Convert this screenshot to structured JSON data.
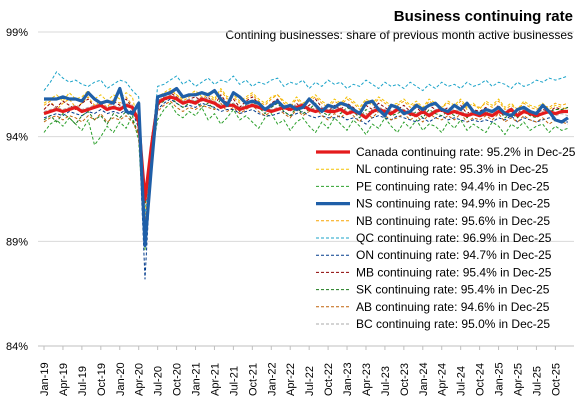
{
  "title": "Business continuing rate",
  "subtitle": "Contining businesses: share of previous month active businesses",
  "chart_data": {
    "type": "line",
    "title": "Business continuing rate",
    "subtitle": "Contining businesses: share of previous month active businesses",
    "xlabel": "",
    "ylabel": "",
    "ylim": [
      84,
      99
    ],
    "yticks": [
      84,
      89,
      94,
      99
    ],
    "ytick_labels": [
      "84%",
      "89%",
      "94%",
      "99%"
    ],
    "x_ticks": [
      "Jan-19",
      "Apr-19",
      "Jul-19",
      "Oct-19",
      "Jan-20",
      "Apr-20",
      "Jul-20",
      "Oct-20",
      "Jan-21",
      "Apr-21",
      "Jul-21",
      "Oct-21",
      "Jan-22",
      "Apr-22",
      "Jul-22",
      "Oct-22",
      "Jan-23",
      "Apr-23",
      "Jul-23",
      "Oct-23",
      "Jan-24",
      "Apr-24",
      "Jul-24",
      "Oct-24",
      "Jan-25",
      "Apr-25",
      "Jul-25",
      "Oct-25"
    ],
    "x_start": "Jan-19",
    "x_end": "Dec-25",
    "grid": "horizontal",
    "legend_position": "right",
    "series": [
      {
        "name": "Canada continuing rate: 95.2% in Dec-25",
        "color": "#e41a1c",
        "style": "solid",
        "width": 3.2,
        "values": [
          95.1,
          95.2,
          95.3,
          95.2,
          95.3,
          95.4,
          95.2,
          95.3,
          95.4,
          95.5,
          95.3,
          95.4,
          95.3,
          95.5,
          95.4,
          94.7,
          91.0,
          93.5,
          95.6,
          95.8,
          95.9,
          95.8,
          95.6,
          95.7,
          95.6,
          95.8,
          95.7,
          95.6,
          95.4,
          95.5,
          95.5,
          95.3,
          95.4,
          95.5,
          95.4,
          95.3,
          95.2,
          95.3,
          95.4,
          95.3,
          95.4,
          95.5,
          95.3,
          95.2,
          95.3,
          95.2,
          95.2,
          95.3,
          95.1,
          95.2,
          95.1,
          94.9,
          95.2,
          95.3,
          95.2,
          95.1,
          95.3,
          95.2,
          95.1,
          95.0,
          95.2,
          95.0,
          95.2,
          95.3,
          95.1,
          95.2,
          95.1,
          95.0,
          95.1,
          95.0,
          95.1,
          95.0,
          95.2,
          95.1,
          95.3,
          95.0,
          95.2,
          95.1,
          95.0,
          95.1,
          95.2,
          95.1,
          95.2,
          95.2
        ]
      },
      {
        "name": "NL continuing rate: 95.3% in Dec-25",
        "color": "#f3c200",
        "style": "dashed",
        "width": 1,
        "values": [
          95.6,
          95.8,
          96.0,
          95.7,
          96.1,
          95.8,
          95.9,
          96.2,
          95.8,
          96.0,
          95.7,
          96.0,
          95.8,
          96.1,
          95.9,
          94.5,
          90.5,
          93.8,
          95.9,
          96.1,
          96.3,
          96.0,
          95.8,
          96.0,
          96.2,
          95.9,
          96.1,
          95.8,
          96.3,
          95.9,
          96.0,
          95.7,
          95.9,
          96.1,
          95.8,
          95.6,
          95.9,
          96.0,
          95.7,
          95.5,
          95.9,
          95.6,
          95.8,
          96.0,
          95.7,
          95.5,
          95.8,
          95.6,
          95.9,
          95.7,
          95.4,
          95.8,
          95.6,
          95.9,
          95.7,
          95.5,
          95.6,
          95.8,
          95.5,
          95.7,
          95.4,
          95.8,
          95.6,
          95.4,
          95.7,
          95.5,
          95.8,
          95.4,
          95.6,
          95.3,
          95.7,
          95.5,
          95.8,
          95.4,
          95.6,
          95.3,
          95.7,
          95.5,
          95.4,
          95.6,
          95.3,
          95.5,
          95.4,
          95.3
        ]
      },
      {
        "name": "PE continuing rate: 94.4% in Dec-25",
        "color": "#2ca02c",
        "style": "dashed",
        "width": 1,
        "values": [
          94.2,
          94.6,
          94.8,
          94.5,
          94.9,
          94.6,
          94.3,
          94.8,
          93.6,
          94.0,
          94.5,
          94.2,
          94.7,
          94.4,
          95.0,
          93.8,
          88.6,
          93.0,
          94.8,
          95.3,
          95.6,
          95.1,
          94.9,
          95.2,
          95.0,
          95.4,
          94.8,
          95.1,
          94.6,
          94.9,
          95.3,
          94.8,
          95.0,
          94.7,
          94.4,
          94.9,
          95.1,
          94.6,
          94.8,
          94.3,
          94.7,
          94.9,
          94.5,
          94.2,
          94.7,
          94.4,
          94.9,
          94.6,
          94.3,
          94.8,
          94.5,
          94.1,
          94.6,
          94.4,
          94.9,
          94.5,
          94.2,
          94.7,
          94.4,
          94.8,
          94.3,
          94.6,
          94.5,
          94.2,
          94.7,
          94.4,
          94.8,
          94.3,
          94.6,
          94.4,
          94.2,
          94.7,
          94.5,
          94.1,
          94.6,
          94.4,
          94.7,
          94.3,
          94.5,
          94.6,
          94.2,
          94.5,
          94.3,
          94.4
        ]
      },
      {
        "name": "NS continuing rate: 94.9% in Dec-25",
        "color": "#1f5fa8",
        "style": "solid",
        "width": 3.2,
        "values": [
          95.8,
          95.8,
          95.8,
          95.9,
          95.8,
          95.8,
          95.7,
          96.1,
          95.8,
          95.6,
          95.7,
          95.6,
          96.3,
          95.2,
          95.1,
          95.6,
          88.8,
          92.5,
          95.9,
          96.0,
          96.1,
          96.3,
          95.9,
          96.0,
          96.0,
          96.1,
          96.0,
          96.2,
          95.8,
          95.5,
          96.1,
          95.9,
          95.6,
          95.7,
          95.6,
          95.3,
          95.5,
          95.7,
          95.4,
          95.5,
          95.3,
          95.4,
          95.8,
          95.5,
          95.2,
          95.5,
          95.4,
          95.6,
          95.5,
          95.3,
          95.1,
          95.6,
          95.7,
          95.3,
          95.0,
          95.5,
          95.4,
          95.1,
          95.2,
          95.5,
          95.3,
          95.5,
          95.6,
          95.3,
          95.2,
          95.5,
          95.3,
          95.6,
          95.2,
          95.1,
          95.3,
          95.2,
          95.4,
          95.1,
          95.0,
          95.3,
          95.4,
          95.2,
          95.1,
          95.5,
          95.2,
          94.8,
          94.7,
          94.9
        ]
      },
      {
        "name": "NB continuing rate: 95.6% in Dec-25",
        "color": "#f7a400",
        "style": "dashed",
        "width": 1,
        "values": [
          95.5,
          95.7,
          95.3,
          95.6,
          95.8,
          95.4,
          95.6,
          95.9,
          95.5,
          95.7,
          95.4,
          95.8,
          95.6,
          95.9,
          95.5,
          94.9,
          89.6,
          93.4,
          95.8,
          96.0,
          96.2,
          96.0,
          95.7,
          95.9,
          96.1,
          95.8,
          96.0,
          95.7,
          96.2,
          95.8,
          95.9,
          95.6,
          95.8,
          96.0,
          95.7,
          95.5,
          95.8,
          96.0,
          95.6,
          95.4,
          95.8,
          95.5,
          95.7,
          95.9,
          95.6,
          95.4,
          95.7,
          95.5,
          95.8,
          95.6,
          95.3,
          95.7,
          95.5,
          95.8,
          95.6,
          95.4,
          95.5,
          95.7,
          95.4,
          95.6,
          95.3,
          95.7,
          95.5,
          95.4,
          95.6,
          95.4,
          95.7,
          95.3,
          95.5,
          95.4,
          95.6,
          95.4,
          95.7,
          95.3,
          95.5,
          95.3,
          95.6,
          95.4,
          95.3,
          95.5,
          95.4,
          95.6,
          95.5,
          95.6
        ]
      },
      {
        "name": "QC continuing rate: 96.9% in Dec-25",
        "color": "#1aa3c9",
        "style": "dashed",
        "width": 1,
        "values": [
          96.2,
          96.6,
          97.1,
          96.8,
          96.6,
          96.7,
          96.5,
          96.4,
          96.6,
          96.7,
          96.3,
          96.5,
          96.7,
          96.6,
          96.2,
          95.9,
          90.2,
          93.4,
          96.4,
          96.5,
          96.7,
          96.9,
          96.5,
          96.7,
          96.4,
          96.6,
          96.8,
          96.5,
          96.7,
          96.6,
          96.9,
          96.5,
          96.7,
          96.4,
          96.6,
          96.5,
          96.7,
          96.8,
          96.4,
          96.6,
          96.5,
          96.7,
          96.3,
          96.6,
          96.4,
          96.7,
          96.5,
          96.6,
          96.3,
          96.5,
          96.4,
          96.7,
          96.5,
          96.3,
          96.6,
          96.4,
          96.5,
          96.3,
          96.6,
          96.4,
          96.2,
          96.5,
          96.3,
          96.6,
          96.4,
          96.5,
          96.3,
          96.6,
          96.4,
          96.5,
          96.7,
          96.4,
          96.6,
          96.5,
          96.3,
          96.6,
          96.4,
          96.5,
          96.7,
          96.6,
          96.8,
          96.7,
          96.8,
          96.9
        ]
      },
      {
        "name": "ON continuing rate: 94.7% in Dec-25",
        "color": "#003a8c",
        "style": "dashed",
        "width": 1,
        "values": [
          94.9,
          95.0,
          95.1,
          95.0,
          95.2,
          95.1,
          95.0,
          95.2,
          95.1,
          95.3,
          95.1,
          95.2,
          95.1,
          95.3,
          95.2,
          94.4,
          87.2,
          92.8,
          95.3,
          95.6,
          95.8,
          95.6,
          95.4,
          95.5,
          95.4,
          95.6,
          95.5,
          95.4,
          95.2,
          95.3,
          95.3,
          95.1,
          95.2,
          95.3,
          95.1,
          95.0,
          95.0,
          95.1,
          95.2,
          95.0,
          95.1,
          95.2,
          95.0,
          94.9,
          95.0,
          94.9,
          94.9,
          95.0,
          94.8,
          94.9,
          94.8,
          94.6,
          94.9,
          95.0,
          94.9,
          94.8,
          95.0,
          94.9,
          94.8,
          94.7,
          94.9,
          94.7,
          94.9,
          95.0,
          94.8,
          94.9,
          94.8,
          94.7,
          94.8,
          94.7,
          94.8,
          94.7,
          94.9,
          94.8,
          95.0,
          94.7,
          94.9,
          94.8,
          94.7,
          94.8,
          94.9,
          94.8,
          94.7,
          94.7
        ]
      },
      {
        "name": "MB continuing rate: 95.4% in Dec-25",
        "color": "#8b0000",
        "style": "dashed",
        "width": 1,
        "values": [
          95.3,
          95.6,
          95.4,
          95.7,
          95.5,
          95.3,
          95.6,
          95.8,
          95.4,
          95.6,
          95.3,
          95.7,
          95.5,
          95.8,
          95.4,
          94.8,
          90.8,
          93.9,
          95.7,
          95.9,
          96.1,
          95.9,
          95.6,
          95.8,
          95.9,
          95.7,
          95.9,
          95.5,
          96.0,
          95.6,
          95.8,
          95.4,
          95.7,
          95.9,
          95.6,
          95.3,
          95.6,
          95.8,
          95.4,
          95.2,
          95.6,
          95.3,
          95.5,
          95.8,
          95.4,
          95.2,
          95.5,
          95.3,
          95.6,
          95.4,
          95.1,
          95.5,
          95.3,
          95.6,
          95.4,
          95.2,
          95.3,
          95.5,
          95.2,
          95.4,
          95.1,
          95.5,
          95.3,
          95.2,
          95.4,
          95.2,
          95.5,
          95.1,
          95.3,
          95.2,
          95.4,
          95.2,
          95.5,
          95.1,
          95.3,
          95.1,
          95.4,
          95.2,
          95.1,
          95.3,
          95.2,
          95.4,
          95.3,
          95.4
        ]
      },
      {
        "name": "SK continuing rate: 95.4% in Dec-25",
        "color": "#1a7a1a",
        "style": "dashed",
        "width": 1,
        "values": [
          94.8,
          95.0,
          94.7,
          95.1,
          94.9,
          94.6,
          95.0,
          95.2,
          94.8,
          95.0,
          94.6,
          95.1,
          94.9,
          95.2,
          94.8,
          94.2,
          90.9,
          93.7,
          95.5,
          95.7,
          95.9,
          95.6,
          95.4,
          95.6,
          95.7,
          95.4,
          95.6,
          95.3,
          95.8,
          95.4,
          95.6,
          95.2,
          95.5,
          95.7,
          95.4,
          95.1,
          95.4,
          95.6,
          95.2,
          95.0,
          95.4,
          95.1,
          95.3,
          95.6,
          95.2,
          95.0,
          95.3,
          95.1,
          95.4,
          95.2,
          94.9,
          95.3,
          95.1,
          95.4,
          95.2,
          95.0,
          95.1,
          95.3,
          95.0,
          95.2,
          94.9,
          95.3,
          95.1,
          95.0,
          95.2,
          95.0,
          95.3,
          94.9,
          95.1,
          95.0,
          95.2,
          95.0,
          95.3,
          94.9,
          95.1,
          94.9,
          95.2,
          95.0,
          94.9,
          95.1,
          95.2,
          95.3,
          95.3,
          95.4
        ]
      },
      {
        "name": "AB continuing rate: 94.6% in Dec-25",
        "color": "#c0620a",
        "style": "dashed",
        "width": 1,
        "values": [
          94.7,
          94.9,
          95.0,
          94.8,
          95.0,
          94.9,
          94.7,
          95.0,
          94.8,
          95.1,
          94.7,
          94.9,
          94.8,
          95.0,
          94.7,
          94.1,
          89.8,
          92.9,
          95.2,
          95.5,
          95.7,
          95.4,
          95.2,
          95.4,
          95.3,
          95.5,
          95.4,
          95.3,
          95.6,
          95.2,
          95.4,
          95.1,
          95.3,
          95.5,
          95.2,
          95.0,
          95.2,
          95.4,
          95.1,
          94.9,
          95.3,
          95.0,
          95.2,
          95.4,
          95.0,
          94.8,
          95.1,
          94.9,
          95.2,
          95.0,
          94.7,
          95.1,
          94.9,
          95.2,
          95.0,
          94.8,
          94.9,
          95.1,
          94.8,
          95.0,
          94.7,
          95.1,
          94.9,
          94.8,
          95.0,
          94.8,
          95.1,
          94.7,
          94.9,
          94.8,
          95.0,
          94.8,
          95.1,
          94.7,
          94.9,
          94.7,
          95.0,
          94.8,
          94.7,
          94.9,
          94.6,
          94.8,
          94.7,
          94.6
        ]
      },
      {
        "name": "BC continuing rate: 95.0% in Dec-25",
        "color": "#aaaaaa",
        "style": "dashed",
        "width": 1,
        "values": [
          95.2,
          95.3,
          95.4,
          95.3,
          95.4,
          95.5,
          95.3,
          95.4,
          95.5,
          95.6,
          95.4,
          95.5,
          95.4,
          95.6,
          95.5,
          94.8,
          91.2,
          93.7,
          95.7,
          95.9,
          96.0,
          95.9,
          95.7,
          95.8,
          95.7,
          95.9,
          95.8,
          95.7,
          95.5,
          95.6,
          95.6,
          95.4,
          95.5,
          95.6,
          95.5,
          95.4,
          95.3,
          95.4,
          95.5,
          95.4,
          95.5,
          95.6,
          95.4,
          95.3,
          95.4,
          95.3,
          95.3,
          95.4,
          95.2,
          95.3,
          95.2,
          95.0,
          95.3,
          95.4,
          95.3,
          95.2,
          95.4,
          95.3,
          95.2,
          95.1,
          95.3,
          95.1,
          95.3,
          95.4,
          95.2,
          95.3,
          95.2,
          95.1,
          95.2,
          95.1,
          95.2,
          95.1,
          95.3,
          95.2,
          95.4,
          95.1,
          95.3,
          95.2,
          95.1,
          95.2,
          95.1,
          95.0,
          95.1,
          95.0
        ]
      }
    ]
  }
}
